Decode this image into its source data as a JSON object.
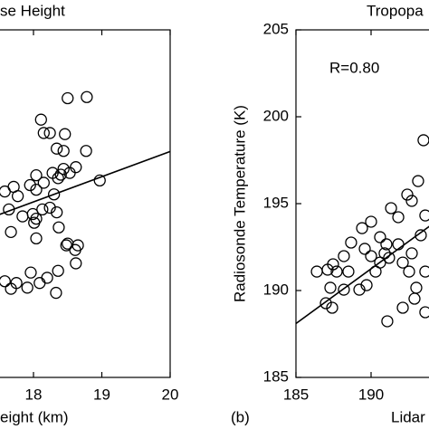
{
  "chart_data": [
    {
      "type": "scatter",
      "title": "se Height",
      "xlabel": "eight (km)",
      "color": "#000000",
      "xlim": [
        16,
        20
      ],
      "ylim": [
        14,
        20
      ],
      "xticks": [
        18,
        19,
        20
      ],
      "x": [
        18.5,
        18.46,
        18.78,
        18.24,
        18.15,
        18.44,
        18.34,
        18.44,
        18.4,
        18.53,
        18.62,
        18.28,
        18.04,
        18.15,
        18.36,
        18.04,
        18.3,
        18.24,
        18.13,
        17.99,
        18.04,
        17.71,
        17.77,
        17.84,
        17.67,
        17.58,
        17.64,
        18.01,
        18.37,
        18.04,
        18.34,
        18.5,
        18.65,
        18.61,
        18.48,
        18.62,
        18.36,
        17.96,
        17.67,
        17.58,
        17.75,
        18.09,
        18.33,
        18.2,
        18.77,
        18.97,
        18.11,
        17.95,
        17.91
      ],
      "y": [
        18.82,
        18.2,
        18.84,
        18.22,
        18.22,
        17.91,
        17.95,
        17.6,
        17.5,
        17.53,
        17.63,
        17.53,
        17.49,
        17.36,
        17.44,
        17.24,
        17.16,
        16.93,
        16.9,
        16.82,
        16.74,
        17.29,
        17.13,
        16.78,
        16.51,
        17.21,
        16.9,
        16.67,
        16.59,
        16.4,
        16.85,
        16.31,
        16.28,
        16.2,
        16.28,
        15.97,
        15.84,
        15.81,
        15.53,
        15.66,
        15.63,
        15.63,
        15.46,
        15.72,
        17.91,
        17.4,
        18.45,
        17.32,
        15.55
      ],
      "fit": {
        "x": [
          16,
          20
        ],
        "y": [
          16.16,
          17.9
        ]
      }
    },
    {
      "type": "scatter",
      "title": "Tropopa",
      "xlabel": "Lidar",
      "ylabel": "Radiosonde Temperature (K)",
      "annotation": "R=0.80",
      "panel_label": "(b)",
      "color": "#000000",
      "xlim": [
        185,
        205
      ],
      "ylim": [
        185,
        205
      ],
      "xticks": [
        185,
        190
      ],
      "yticks": [
        185,
        190,
        195,
        200,
        205
      ],
      "x": [
        186.39,
        187.11,
        187.71,
        187.47,
        188.19,
        188.67,
        189.4,
        190.0,
        189.58,
        190.0,
        190.6,
        190.9,
        191.2,
        191.81,
        192.11,
        192.71,
        193.31,
        193.61,
        193.49,
        193.13,
        192.41,
        191.81,
        191.33,
        191.02,
        190.3,
        189.7,
        189.22,
        188.19,
        187.29,
        186.99,
        187.41,
        191.08,
        192.53,
        193.61,
        193.01,
        192.89,
        192.11,
        193.61,
        192.71,
        190.6,
        188.49
      ],
      "y": [
        191.09,
        191.2,
        191.09,
        191.51,
        191.98,
        192.76,
        193.59,
        193.96,
        192.4,
        191.98,
        193.07,
        192.14,
        191.88,
        192.66,
        191.61,
        192.14,
        193.18,
        194.32,
        198.65,
        196.3,
        195.52,
        194.22,
        194.74,
        192.66,
        191.09,
        190.31,
        190.05,
        190.05,
        190.16,
        189.27,
        189.01,
        188.23,
        191.09,
        191.09,
        190.16,
        189.53,
        189.01,
        188.75,
        195.16,
        191.61,
        191.09
      ],
      "fit": {
        "x": [
          185,
          205
        ],
        "y": [
          188.1,
          200.7
        ]
      }
    }
  ]
}
